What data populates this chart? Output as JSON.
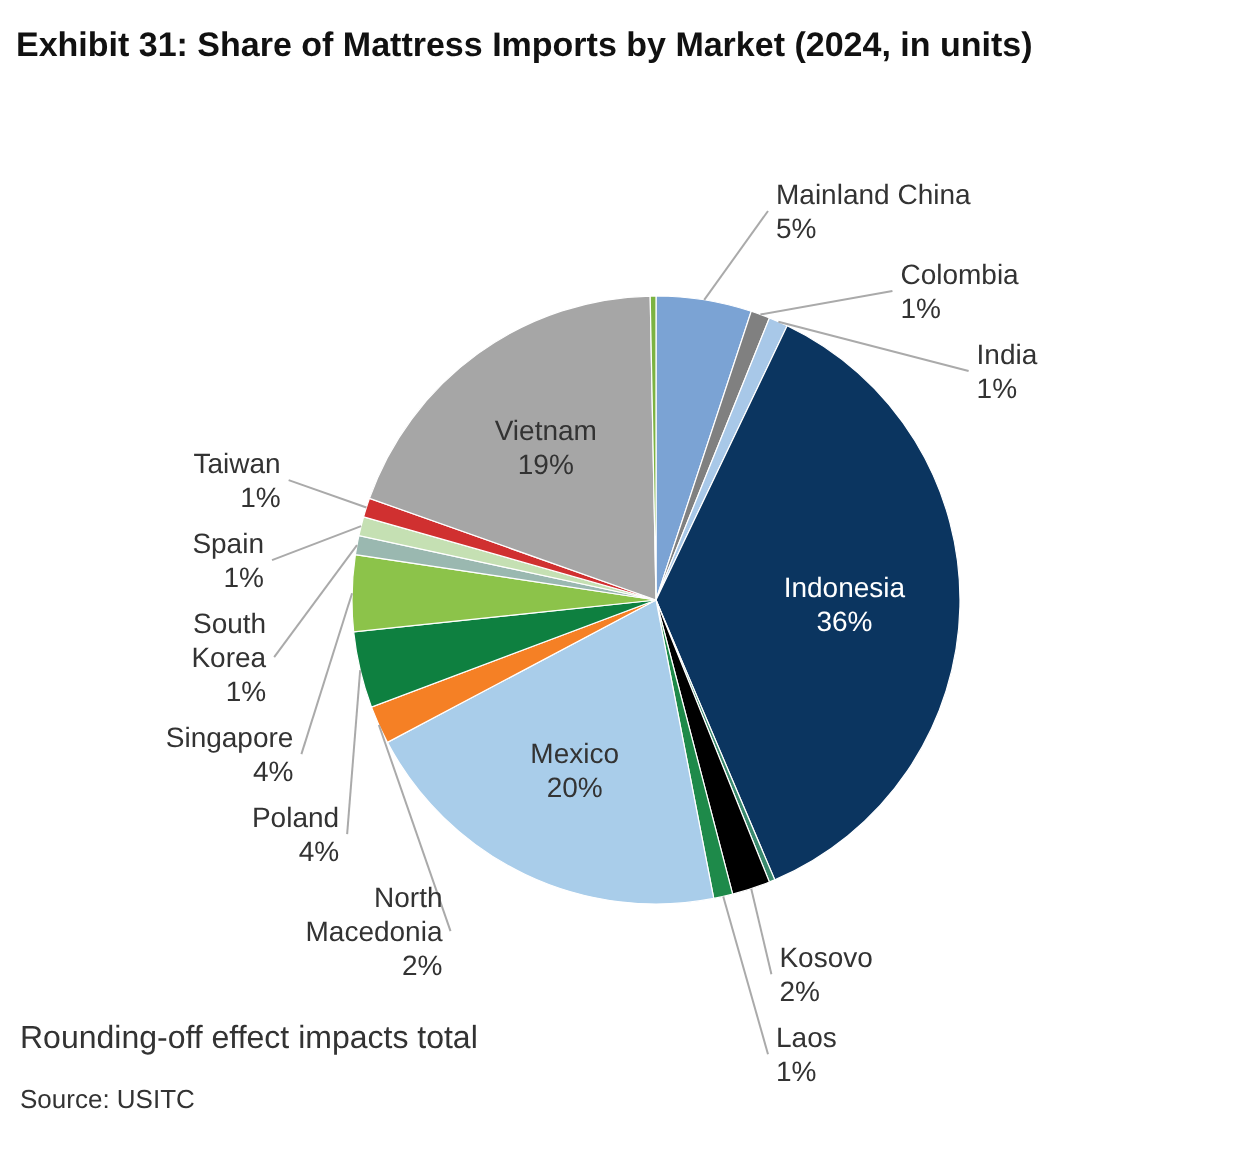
{
  "chart_data": {
    "type": "pie",
    "title": "Exhibit 31: Share of Mattress Imports by Market (2024, in units)",
    "categories": [
      "Mainland  China",
      "Colombia",
      "India",
      "Indonesia",
      null,
      "Kosovo",
      "Laos",
      "Mexico",
      "North Macedonia",
      "Poland",
      "Singapore",
      "South Korea",
      "Spain",
      "Taiwan",
      "Vietnam",
      null
    ],
    "values": [
      5,
      1,
      1,
      36,
      0.3,
      2,
      1,
      20,
      2,
      4,
      4,
      1,
      1,
      1,
      19,
      0.3
    ],
    "value_labels": [
      "5%",
      "1%",
      "1%",
      "36%",
      null,
      "2%",
      "1%",
      "20%",
      "2%",
      "4%",
      "4%",
      "1%",
      "1%",
      "1%",
      "19%",
      null
    ],
    "colors": [
      "#7ba3d4",
      "#808080",
      "#a8c8e8",
      "#0b3560",
      "#3a8a6e",
      "#000000",
      "#1e8a4a",
      "#a9cdea",
      "#f58025",
      "#0e8040",
      "#8cc34a",
      "#9ab8b0",
      "#c5e0b3",
      "#d03030",
      "#a6a6a6",
      "#7cb342"
    ],
    "legend": false,
    "annotations": [
      "Rounding-off effect impacts total",
      "Source: USITC"
    ]
  }
}
